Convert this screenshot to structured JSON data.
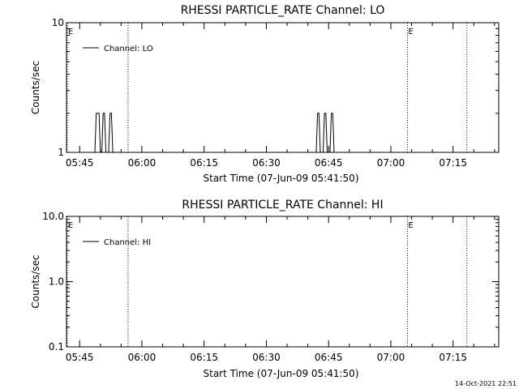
{
  "chart_data": [
    {
      "type": "line",
      "title": "RHESSI PARTICLE_RATE Channel: LO",
      "xlabel": "Start Time (07-Jun-09 05:41:50)",
      "ylabel": "Counts/sec",
      "yscale": "log",
      "ylim": [
        1,
        10
      ],
      "yticks": [
        1,
        10
      ],
      "ytick_labels": [
        "1",
        "10"
      ],
      "xlim": [
        "05:41:50",
        "07:26:00"
      ],
      "xticks": [
        "05:45",
        "06:00",
        "06:15",
        "06:30",
        "06:45",
        "07:00",
        "07:15"
      ],
      "legend": {
        "placement": "top-left",
        "label": "Channel: LO"
      },
      "markers": [
        {
          "time": "05:42:00",
          "label": "E"
        },
        {
          "time": "05:56:40",
          "label": ""
        },
        {
          "time": "07:04:00",
          "label": "E"
        },
        {
          "time": "07:18:20",
          "label": ""
        }
      ],
      "series": [
        {
          "name": "Channel: LO",
          "x": [
            "05:41:50",
            "05:48:40",
            "05:49:00",
            "05:49:40",
            "05:50:00",
            "05:50:20",
            "05:50:40",
            "05:51:00",
            "05:51:20",
            "05:51:40",
            "05:52:00",
            "05:52:20",
            "05:52:40",
            "05:53:00",
            "05:53:20",
            "05:53:40",
            "06:41:40",
            "06:42:00",
            "06:42:20",
            "06:42:40",
            "06:43:00",
            "06:43:20",
            "06:43:40",
            "06:44:00",
            "06:44:20",
            "06:44:40",
            "06:45:00",
            "06:45:20",
            "06:45:40",
            "06:46:00",
            "06:46:20",
            "07:26:00"
          ],
          "y": [
            1,
            1,
            2,
            2,
            1,
            1,
            2,
            2,
            1,
            1,
            1,
            2,
            2,
            1,
            1,
            1,
            1,
            1,
            2,
            2,
            1,
            1,
            1,
            2,
            2,
            1,
            1,
            1,
            2,
            2,
            1,
            1
          ]
        }
      ]
    },
    {
      "type": "line",
      "title": "RHESSI PARTICLE_RATE Channel: HI",
      "xlabel": "Start Time (07-Jun-09 05:41:50)",
      "ylabel": "Counts/sec",
      "yscale": "log",
      "ylim": [
        0.1,
        10
      ],
      "yticks": [
        0.1,
        1,
        10
      ],
      "ytick_labels": [
        "0.1",
        "1.0",
        "10.0"
      ],
      "xlim": [
        "05:41:50",
        "07:26:00"
      ],
      "xticks": [
        "05:45",
        "06:00",
        "06:15",
        "06:30",
        "06:45",
        "07:00",
        "07:15"
      ],
      "legend": {
        "placement": "top-left",
        "label": "Channel: HI"
      },
      "markers": [
        {
          "time": "05:42:00",
          "label": "E"
        },
        {
          "time": "05:56:40",
          "label": ""
        },
        {
          "time": "07:04:00",
          "label": "E"
        },
        {
          "time": "07:18:20",
          "label": ""
        }
      ],
      "series": [
        {
          "name": "Channel: HI",
          "x": [],
          "y": []
        }
      ]
    }
  ],
  "footer": {
    "timestamp": "14-Oct-2021 22:51"
  }
}
